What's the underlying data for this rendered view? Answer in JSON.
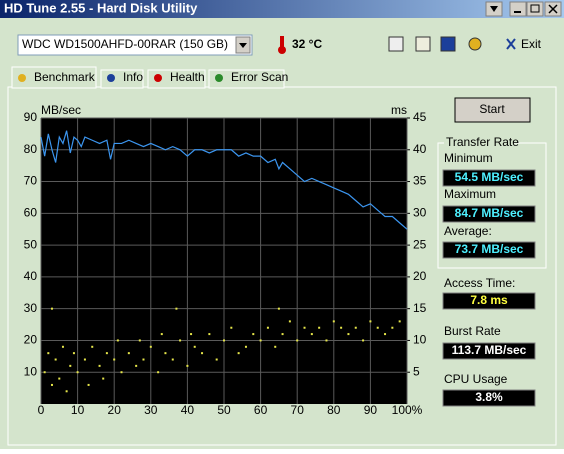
{
  "window": {
    "title": "HD Tune 2.55 - Hard Disk Utility"
  },
  "toolbar": {
    "drive": "WDC WD1500AHFD-00RAR (150 GB)",
    "temperature": "32 °C",
    "exit": "Exit"
  },
  "tabs": [
    "Benchmark",
    "Info",
    "Health",
    "Error Scan"
  ],
  "chart_data": {
    "type": "line",
    "ylabel": "MB/sec",
    "y2label": "ms",
    "x": [
      0,
      1,
      2,
      3,
      4,
      5,
      6,
      7,
      8,
      9,
      10,
      11,
      12,
      14,
      16,
      18,
      19,
      20,
      22,
      24,
      26,
      28,
      30,
      32,
      34,
      36,
      38,
      40,
      42,
      44,
      46,
      48,
      50,
      52,
      54,
      56,
      58,
      60,
      62,
      64,
      65,
      66,
      68,
      70,
      72,
      74,
      76,
      78,
      80,
      82,
      84,
      86,
      88,
      90,
      92,
      94,
      96,
      98,
      100
    ],
    "xlim": [
      0,
      100
    ],
    "xticks": [
      0,
      10,
      20,
      30,
      40,
      50,
      60,
      70,
      80,
      90,
      {
        "value": 100,
        "label": "100%"
      }
    ],
    "ylim": [
      0,
      90
    ],
    "yticks": [
      10,
      20,
      30,
      40,
      50,
      60,
      70,
      80,
      90
    ],
    "y2lim": [
      0,
      45
    ],
    "y2ticks": [
      5,
      10,
      15,
      20,
      25,
      30,
      35,
      40,
      45
    ],
    "grid": true,
    "series": [
      {
        "color": "#3c96f0",
        "values": [
          84,
          78,
          85,
          80,
          76,
          84,
          82,
          86,
          79,
          84,
          83,
          81,
          84,
          83,
          82,
          83,
          77,
          82,
          82,
          83,
          82,
          81,
          82,
          81,
          80,
          81,
          80,
          78,
          80,
          80,
          79,
          80,
          80,
          80,
          78,
          79,
          78,
          78,
          76,
          77,
          74,
          76,
          74,
          72,
          70,
          71,
          70,
          69,
          68,
          67,
          66,
          64,
          62,
          63,
          61,
          59,
          59,
          57,
          55
        ]
      },
      {
        "type": "scatter",
        "axis": "y2",
        "color": "#e6e64a",
        "x": [
          1,
          2,
          3,
          4,
          5,
          6,
          7,
          8,
          9,
          10,
          12,
          13,
          14,
          16,
          17,
          18,
          20,
          21,
          22,
          24,
          26,
          27,
          28,
          30,
          32,
          33,
          34,
          36,
          38,
          40,
          41,
          42,
          44,
          46,
          48,
          50,
          52,
          54,
          56,
          58,
          60,
          62,
          64,
          66,
          68,
          70,
          72,
          74,
          76,
          78,
          80,
          82,
          84,
          86,
          88,
          90,
          92,
          94,
          96,
          98,
          3,
          37,
          65
        ],
        "values": [
          5,
          8,
          3,
          7,
          4,
          9,
          2,
          6,
          8,
          5,
          7,
          3,
          9,
          6,
          4,
          8,
          7,
          10,
          5,
          8,
          6,
          10,
          7,
          9,
          5,
          11,
          8,
          7,
          10,
          6,
          11,
          9,
          8,
          11,
          7,
          10,
          12,
          8,
          9,
          11,
          10,
          12,
          9,
          11,
          13,
          10,
          12,
          11,
          12,
          10,
          13,
          12,
          11,
          12,
          10,
          13,
          12,
          11,
          12,
          13,
          15,
          15,
          15
        ]
      }
    ]
  },
  "panel": {
    "start": "Start",
    "transfer_rate": "Transfer Rate",
    "minimum_label": "Minimum",
    "minimum": "54.5 MB/sec",
    "maximum_label": "Maximum",
    "maximum": "84.7 MB/sec",
    "average_label": "Average:",
    "average": "73.7 MB/sec",
    "access_label": "Access Time:",
    "access": "7.8 ms",
    "burst_label": "Burst Rate",
    "burst": "113.7 MB/sec",
    "cpu_label": "CPU Usage",
    "cpu": "3.8%"
  }
}
